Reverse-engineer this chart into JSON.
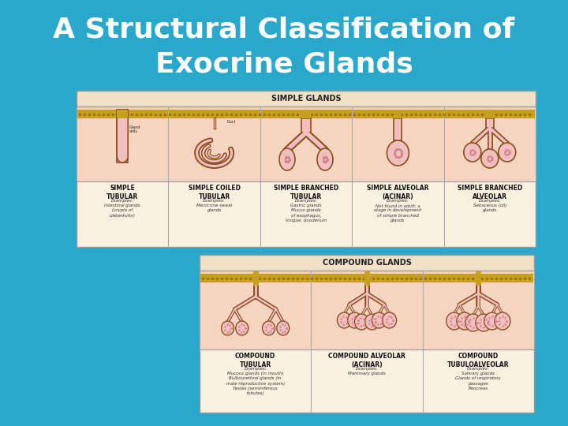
{
  "title_line1": "A Structural Classification of",
  "title_line2": "Exocrine Glands",
  "title_color": "#FFFFFF",
  "title_fontsize": 26,
  "title_fontweight": "bold",
  "bg_color": "#29A8CB",
  "diagram_bg": "#F5E6D0",
  "diagram_bg2": "#FAF0E0",
  "header_bg": "#F0E0C8",
  "illus_bg": "#F5D5C0",
  "stripe_color": "#C8A020",
  "stripe_color2": "#B89018",
  "pink_fill": "#F0C0C0",
  "pink_fill2": "#E8B0B0",
  "brown_stroke": "#8B5020",
  "brown_light": "#C07840",
  "text_color": "#222222",
  "border_color": "#AAAAAA",
  "simple_glands_label": "SIMPLE GLANDS",
  "compound_glands_label": "COMPOUND GLANDS",
  "simple_types": [
    {
      "name": "SIMPLE\nTUBULAR",
      "examples": "Examples:\nIntestinal glands\n(crypts of\nLieberkuhn)"
    },
    {
      "name": "SIMPLE COILED\nTUBULAR",
      "examples": "Examples:\nMerocrine sweat\nglands"
    },
    {
      "name": "SIMPLE BRANCHED\nTUBULAR",
      "examples": "Examples:\nGastric glands\nMucus glands\nof esophagus,\ntongue, duodenum"
    },
    {
      "name": "SIMPLE ALVEOLAR\n(ACINAR)",
      "examples": "Examples:\nNot found in adult; a\nstage in development\nof simple branched\nglands"
    },
    {
      "name": "SIMPLE BRANCHED\nALVEOLAR",
      "examples": "Examples:\nSebaceous (oil)\nglands"
    }
  ],
  "compound_types": [
    {
      "name": "COMPOUND\nTUBULAR",
      "examples": "Examples:\nMucous glands (in mouth)\nBulbourethral glands (in\nmale reproductive system)\nTestes (seminiferous\ntubules)"
    },
    {
      "name": "COMPOUND ALVEOLAR\n(ACINAR)",
      "examples": "Examples:\nMammary glands"
    },
    {
      "name": "COMPOUND\nTUBULOALVEOLAR",
      "examples": "Examples:\nSalivary glands\nGlands of respiratory\npassages\nPancreas"
    }
  ]
}
